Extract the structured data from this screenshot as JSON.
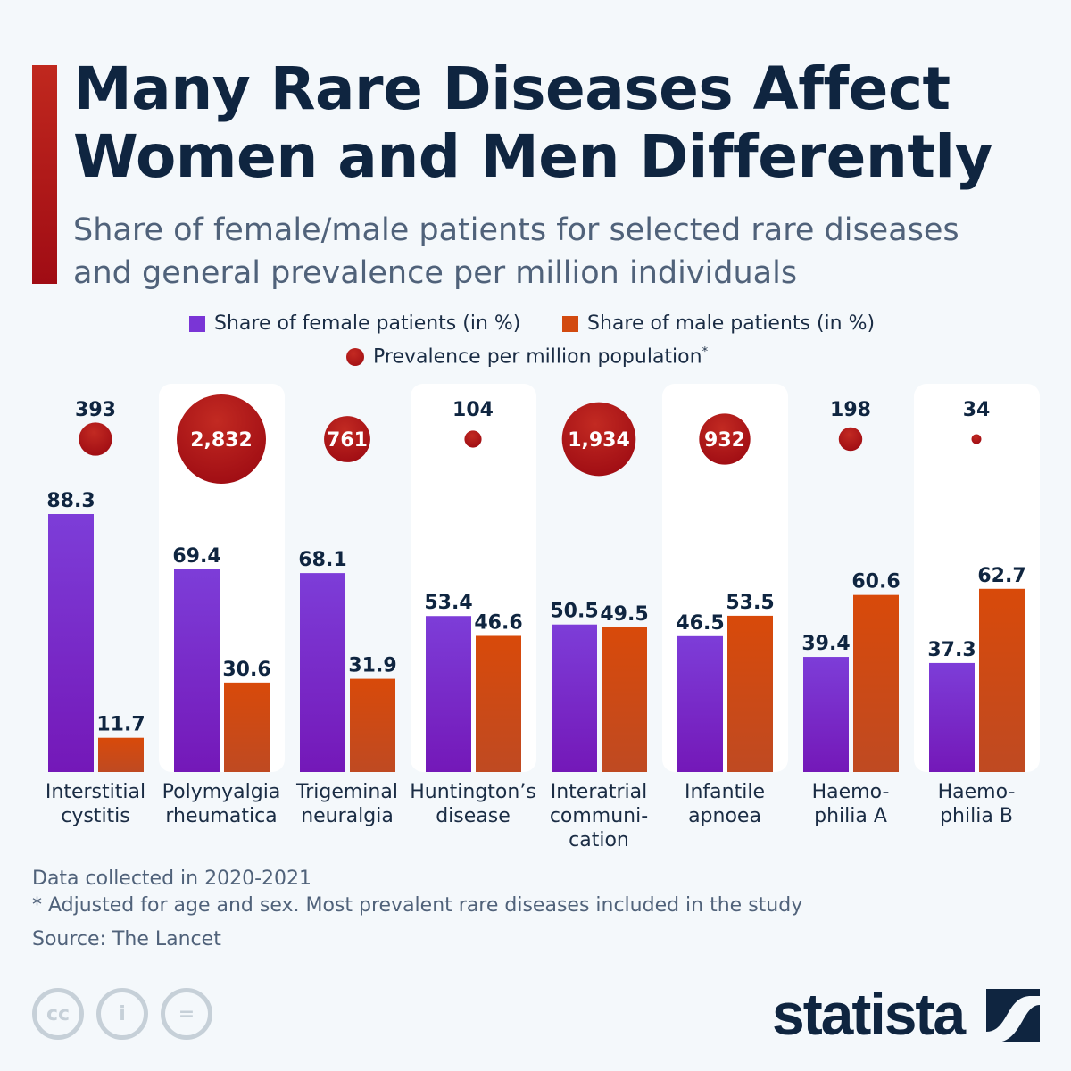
{
  "title_line1": "Many Rare Diseases Affect",
  "title_line2": "Women and Men Differently",
  "subtitle_line1": "Share of female/male patients for selected rare diseases",
  "subtitle_line2": "and general prevalence per million individuals",
  "colors": {
    "female": "#7a35d6",
    "male": "#d24a10",
    "prevalence": "#b01a18",
    "title": "#0f2540"
  },
  "chart_data": {
    "type": "bar",
    "legend": {
      "female": "Share of female patients (in %)",
      "male": "Share of male patients (in %)",
      "prevalence": "Prevalence per million population",
      "prevalence_mark": "*"
    },
    "legend_placement": "top",
    "grid": false,
    "ylim": [
      0,
      100
    ],
    "categories": [
      [
        "Interstitial",
        "cystitis"
      ],
      [
        "Polymyalgia",
        "rheumatica"
      ],
      [
        "Trigeminal",
        "neuralgia"
      ],
      [
        "Huntington’s",
        "disease"
      ],
      [
        "Interatrial",
        "communi-",
        "cation"
      ],
      [
        "Infantile",
        "apnoea"
      ],
      [
        "Haemo-",
        "philia A"
      ],
      [
        "Haemo-",
        "philia B"
      ]
    ],
    "series": [
      {
        "name": "Share of female patients (in %)",
        "values": [
          88.3,
          69.4,
          68.1,
          53.4,
          50.5,
          46.5,
          39.4,
          37.3
        ]
      },
      {
        "name": "Share of male patients (in %)",
        "values": [
          11.7,
          30.6,
          31.9,
          46.6,
          49.5,
          53.5,
          60.6,
          62.7
        ]
      }
    ],
    "prevalence": {
      "values": [
        393,
        2832,
        761,
        104,
        1934,
        932,
        198,
        34
      ],
      "labels": [
        "393",
        "2,832",
        "761",
        "104",
        "1,934",
        "932",
        "198",
        "34"
      ]
    }
  },
  "footer": {
    "note1": "Data collected in 2020-2021",
    "note2": "* Adjusted for age and sex. Most prevalent rare diseases included in the study",
    "source": "Source: The Lancet"
  },
  "license_icons": [
    "cc-icon",
    "attribution-icon",
    "no-derivatives-icon"
  ],
  "logo": "statista"
}
